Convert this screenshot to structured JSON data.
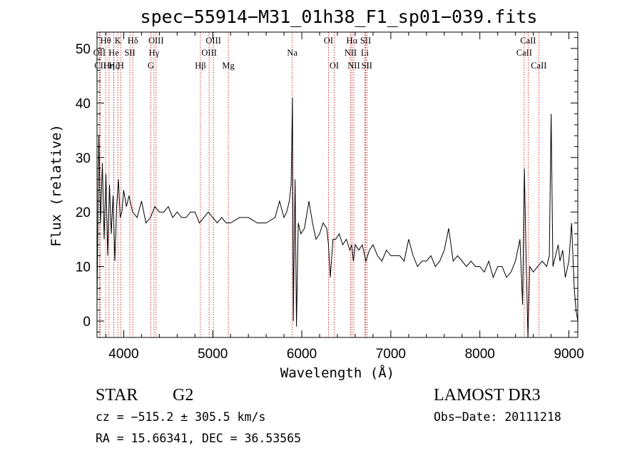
{
  "chart_data": {
    "type": "line",
    "title": "spec−55914−M31_01h38_F1_sp01−039.fits",
    "xlabel": "Wavelength (Å)",
    "ylabel": "Flux (relative)",
    "xlim": [
      3700,
      9100
    ],
    "ylim": [
      -3,
      53
    ],
    "xticks": [
      4000,
      5000,
      6000,
      7000,
      8000,
      9000
    ],
    "xtick_labels": [
      "4000",
      "5000",
      "6000",
      "7000",
      "8000",
      "9000"
    ],
    "yticks": [
      0,
      10,
      20,
      30,
      40,
      50
    ],
    "ytick_labels": [
      "0",
      "10",
      "20",
      "30",
      "40",
      "50"
    ],
    "grid": false,
    "line_color": "#000000",
    "marker_color": "#cc0000",
    "series": [
      {
        "x": [
          3700,
          3720,
          3740,
          3760,
          3780,
          3800,
          3820,
          3840,
          3860,
          3880,
          3900,
          3920,
          3940,
          3960,
          3980,
          4000,
          4030,
          4060,
          4100,
          4150,
          4200,
          4250,
          4300,
          4350,
          4400,
          4450,
          4500,
          4550,
          4600,
          4650,
          4700,
          4750,
          4800,
          4850,
          4900,
          4950,
          5000,
          5050,
          5100,
          5150,
          5200,
          5300,
          5400,
          5500,
          5600,
          5700,
          5750,
          5800,
          5830,
          5860,
          5880,
          5895,
          5905,
          5915,
          5925,
          5940,
          5960,
          5990,
          6030,
          6080,
          6120,
          6160,
          6200,
          6240,
          6280,
          6300,
          6320,
          6350,
          6380,
          6420,
          6460,
          6500,
          6540,
          6560,
          6580,
          6600,
          6640,
          6680,
          6720,
          6760,
          6800,
          6850,
          6900,
          6950,
          7000,
          7050,
          7100,
          7150,
          7200,
          7250,
          7300,
          7350,
          7400,
          7450,
          7500,
          7550,
          7600,
          7650,
          7700,
          7750,
          7800,
          7850,
          7900,
          7950,
          8000,
          8050,
          8100,
          8150,
          8200,
          8250,
          8300,
          8350,
          8400,
          8450,
          8480,
          8500,
          8520,
          8540,
          8560,
          8600,
          8650,
          8700,
          8750,
          8780,
          8800,
          8820,
          8850,
          8880,
          8900,
          8930,
          8960,
          9000,
          9030,
          9060,
          9080,
          9100
        ],
        "y": [
          3,
          34,
          18,
          29,
          15,
          27,
          12,
          25,
          16,
          23,
          11,
          21,
          26,
          19,
          20,
          24,
          21,
          23,
          20,
          19,
          22,
          18,
          19,
          21,
          20,
          20,
          21,
          19,
          20,
          19,
          19,
          20,
          20,
          18,
          19,
          20,
          19,
          18,
          19,
          18,
          18,
          19,
          19,
          18,
          18,
          19,
          22,
          19,
          20,
          22,
          25,
          41,
          0,
          15,
          26,
          -1,
          18,
          16,
          17,
          22,
          18,
          15,
          16,
          18,
          17,
          14,
          8,
          15,
          15,
          16,
          14,
          15,
          13,
          14,
          11,
          14,
          13,
          14,
          11,
          13,
          14,
          12,
          11,
          13,
          12,
          12,
          12,
          11,
          15,
          12,
          10,
          11,
          11,
          12,
          10,
          11,
          13,
          17,
          11,
          12,
          11,
          10,
          11,
          10,
          10,
          9,
          11,
          8,
          10,
          10,
          8,
          9,
          11,
          15,
          3,
          28,
          11,
          -3,
          10,
          9,
          10,
          11,
          10,
          12,
          38,
          10,
          12,
          14,
          11,
          13,
          8,
          11,
          18,
          6,
          2,
          0
        ]
      }
    ],
    "line_markers": [
      {
        "label": "Hθ",
        "x": 3797,
        "row": 1
      },
      {
        "label": "Hη",
        "x": 3835,
        "row": 3
      },
      {
        "label": "OII",
        "x": 3727,
        "row": 2
      },
      {
        "label": "CII",
        "x": 3737,
        "row": 3
      },
      {
        "label": "He",
        "x": 3889,
        "row": 2
      },
      {
        "label": "K",
        "x": 3934,
        "row": 1
      },
      {
        "label": "Hζ",
        "x": 3889,
        "row": 3
      },
      {
        "label": "SII",
        "x": 4069,
        "row": 2
      },
      {
        "label": "H",
        "x": 3968,
        "row": 3
      },
      {
        "label": "Hδ",
        "x": 4102,
        "row": 1
      },
      {
        "label": "OIII",
        "x": 4363,
        "row": 1
      },
      {
        "label": "Hγ",
        "x": 4340,
        "row": 2
      },
      {
        "label": "G",
        "x": 4304,
        "row": 3
      },
      {
        "label": "Hβ",
        "x": 4861,
        "row": 3
      },
      {
        "label": "OIII",
        "x": 5007,
        "row": 1
      },
      {
        "label": "OIII",
        "x": 4959,
        "row": 2
      },
      {
        "label": "Mg",
        "x": 5175,
        "row": 3
      },
      {
        "label": "Na",
        "x": 5893,
        "row": 2
      },
      {
        "label": "OI",
        "x": 6300,
        "row": 1
      },
      {
        "label": "OI",
        "x": 6364,
        "row": 3
      },
      {
        "label": "Hα",
        "x": 6563,
        "row": 1
      },
      {
        "label": "NII",
        "x": 6548,
        "row": 2
      },
      {
        "label": "NII",
        "x": 6584,
        "row": 3
      },
      {
        "label": "SII",
        "x": 6717,
        "row": 1
      },
      {
        "label": "Li",
        "x": 6708,
        "row": 2
      },
      {
        "label": "SII",
        "x": 6731,
        "row": 3
      },
      {
        "label": "CaII",
        "x": 8498,
        "row": 2
      },
      {
        "label": "CaII",
        "x": 8542,
        "row": 1
      },
      {
        "label": "CaII",
        "x": 8662,
        "row": 3
      }
    ]
  },
  "info": {
    "class": "STAR",
    "subclass": "G2",
    "survey": "LAMOST DR3",
    "cz": "cz = −515.2 ± 305.5 km/s",
    "obs_date": "Obs−Date: 20111218",
    "radec": "RA =  15.66341, DEC =  36.53565"
  }
}
